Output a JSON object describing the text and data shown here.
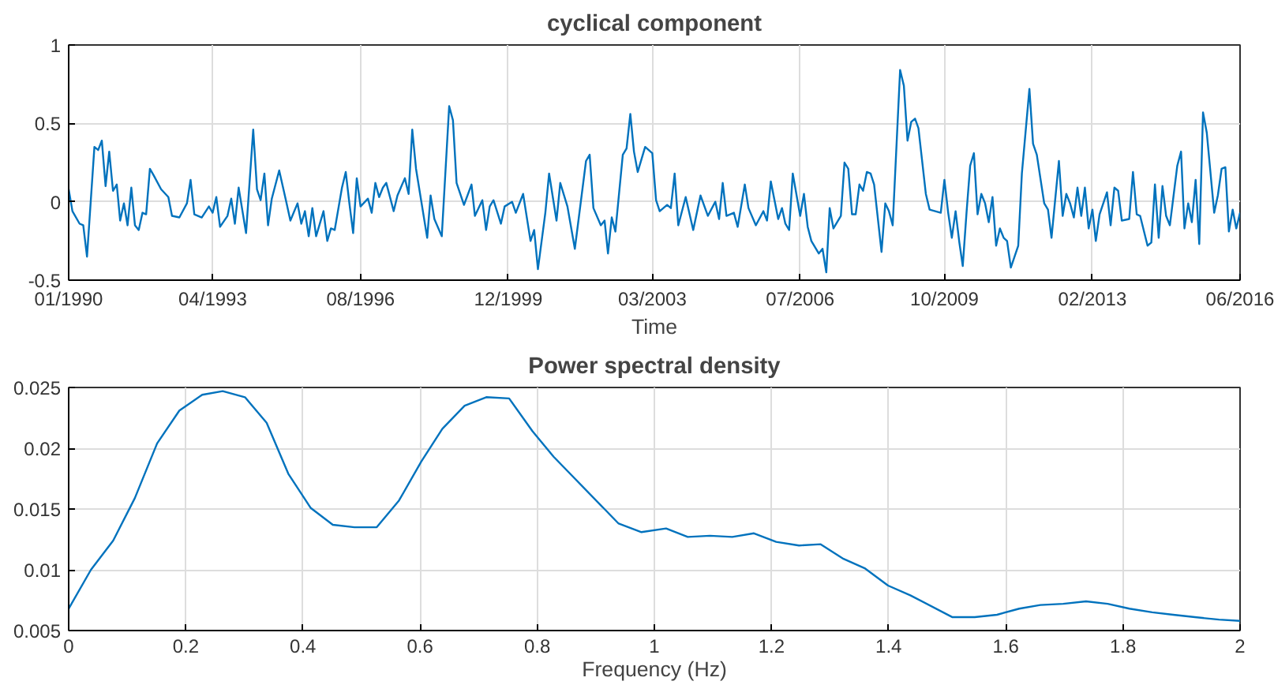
{
  "chart_data": [
    {
      "type": "line",
      "title": "cyclical component",
      "xlabel": "Time",
      "grid": true,
      "marker": "none",
      "line_style": "solid",
      "xlim": [
        "1990-01",
        "2016-06"
      ],
      "ylim": [
        -0.5,
        1
      ],
      "yticks": [
        -0.5,
        0,
        0.5,
        1
      ],
      "xticks": [
        {
          "value": "1990-01",
          "label": "01/1990"
        },
        {
          "value": "1993-04",
          "label": "04/1993"
        },
        {
          "value": "1996-08",
          "label": "08/1996"
        },
        {
          "value": "1999-12",
          "label": "12/1999"
        },
        {
          "value": "2003-03",
          "label": "03/2003"
        },
        {
          "value": "2006-07",
          "label": "07/2006"
        },
        {
          "value": "2009-10",
          "label": "10/2009"
        },
        {
          "value": "2013-02",
          "label": "02/2013"
        },
        {
          "value": "2016-06",
          "label": "06/2016"
        }
      ],
      "series": [
        {
          "color": "#0072bd",
          "x": [
            "1990-01",
            "1990-02",
            "1990-04",
            "1990-05",
            "1990-06",
            "1990-08",
            "1990-09",
            "1990-10",
            "1990-11",
            "1990-12",
            "1991-01",
            "1991-02",
            "1991-03",
            "1991-04",
            "1991-05",
            "1991-06",
            "1991-07",
            "1991-08",
            "1991-09",
            "1991-10",
            "1991-11",
            "1991-12",
            "1992-02",
            "1992-04",
            "1992-05",
            "1992-07",
            "1992-09",
            "1992-10",
            "1992-11",
            "1993-01",
            "1993-03",
            "1993-04",
            "1993-05",
            "1993-06",
            "1993-08",
            "1993-09",
            "1993-10",
            "1993-11",
            "1994-01",
            "1994-03",
            "1994-04",
            "1994-05",
            "1994-06",
            "1994-07",
            "1994-08",
            "1994-10",
            "1994-12",
            "1995-01",
            "1995-03",
            "1995-04",
            "1995-05",
            "1995-06",
            "1995-07",
            "1995-08",
            "1995-10",
            "1995-11",
            "1995-12",
            "1996-01",
            "1996-03",
            "1996-04",
            "1996-05",
            "1996-06",
            "1996-07",
            "1996-08",
            "1996-10",
            "1996-11",
            "1996-12",
            "1997-01",
            "1997-02",
            "1997-03",
            "1997-05",
            "1997-06",
            "1997-08",
            "1997-09",
            "1997-10",
            "1997-11",
            "1998-02",
            "1998-03",
            "1998-04",
            "1998-06",
            "1998-08",
            "1998-09",
            "1998-10",
            "1998-12",
            "1999-02",
            "1999-03",
            "1999-05",
            "1999-06",
            "1999-07",
            "1999-08",
            "1999-10",
            "1999-11",
            "2000-01",
            "2000-02",
            "2000-04",
            "2000-06",
            "2000-07",
            "2000-08",
            "2000-10",
            "2000-11",
            "2001-01",
            "2001-02",
            "2001-04",
            "2001-06",
            "2001-09",
            "2001-10",
            "2001-11",
            "2002-01",
            "2002-02",
            "2002-03",
            "2002-04",
            "2002-05",
            "2002-07",
            "2002-08",
            "2002-09",
            "2002-10",
            "2002-11",
            "2003-01",
            "2003-03",
            "2003-04",
            "2003-05",
            "2003-07",
            "2003-08",
            "2003-09",
            "2003-10",
            "2003-12",
            "2004-02",
            "2004-04",
            "2004-06",
            "2004-08",
            "2004-09",
            "2004-10",
            "2004-11",
            "2005-01",
            "2005-02",
            "2005-04",
            "2005-05",
            "2005-07",
            "2005-09",
            "2005-10",
            "2005-11",
            "2006-01",
            "2006-02",
            "2006-03",
            "2006-04",
            "2006-05",
            "2006-07",
            "2006-08",
            "2006-09",
            "2006-10",
            "2006-12",
            "2007-01",
            "2007-02",
            "2007-03",
            "2007-04",
            "2007-06",
            "2007-07",
            "2007-08",
            "2007-09",
            "2007-10",
            "2007-11",
            "2007-12",
            "2008-01",
            "2008-02",
            "2008-03",
            "2008-05",
            "2008-06",
            "2008-07",
            "2008-08",
            "2008-10",
            "2008-11",
            "2008-12",
            "2009-01",
            "2009-02",
            "2009-03",
            "2009-05",
            "2009-06",
            "2009-09",
            "2009-10",
            "2009-11",
            "2009-12",
            "2010-01",
            "2010-02",
            "2010-03",
            "2010-04",
            "2010-05",
            "2010-06",
            "2010-07",
            "2010-08",
            "2010-09",
            "2010-10",
            "2010-11",
            "2010-12",
            "2011-01",
            "2011-02",
            "2011-03",
            "2011-04",
            "2011-06",
            "2011-07",
            "2011-09",
            "2011-10",
            "2011-11",
            "2012-01",
            "2012-02",
            "2012-03",
            "2012-05",
            "2012-06",
            "2012-07",
            "2012-08",
            "2012-09",
            "2012-10",
            "2012-11",
            "2012-12",
            "2013-01",
            "2013-02",
            "2013-03",
            "2013-04",
            "2013-06",
            "2013-07",
            "2013-08",
            "2013-09",
            "2013-10",
            "2013-12",
            "2014-01",
            "2014-02",
            "2014-03",
            "2014-05",
            "2014-06",
            "2014-07",
            "2014-08",
            "2014-09",
            "2014-10",
            "2014-11",
            "2015-01",
            "2015-02",
            "2015-03",
            "2015-04",
            "2015-05",
            "2015-06",
            "2015-07",
            "2015-08",
            "2015-09",
            "2015-11",
            "2015-12",
            "2016-01",
            "2016-02",
            "2016-03",
            "2016-04",
            "2016-05",
            "2016-06"
          ],
          "values": [
            0.08,
            -0.06,
            -0.14,
            -0.15,
            -0.35,
            0.35,
            0.33,
            0.39,
            0.1,
            0.32,
            0.07,
            0.11,
            -0.12,
            -0.01,
            -0.15,
            0.09,
            -0.15,
            -0.18,
            -0.07,
            -0.08,
            0.21,
            0.17,
            0.08,
            0.03,
            -0.09,
            -0.1,
            -0.01,
            0.14,
            -0.08,
            -0.1,
            -0.03,
            -0.07,
            0.03,
            -0.16,
            -0.09,
            0.02,
            -0.14,
            0.09,
            -0.2,
            0.46,
            0.08,
            0.01,
            0.18,
            -0.15,
            0.02,
            0.2,
            -0.01,
            -0.12,
            -0.01,
            -0.14,
            -0.06,
            -0.22,
            -0.04,
            -0.22,
            -0.06,
            -0.25,
            -0.17,
            -0.18,
            0.09,
            0.19,
            -0.01,
            -0.2,
            0.15,
            -0.03,
            0.02,
            -0.07,
            0.12,
            0.03,
            0.09,
            0.12,
            -0.06,
            0.04,
            0.15,
            0.05,
            0.46,
            0.21,
            -0.23,
            0.04,
            -0.11,
            -0.22,
            0.61,
            0.52,
            0.12,
            -0.02,
            0.11,
            -0.09,
            0.01,
            -0.18,
            -0.03,
            0.01,
            -0.14,
            -0.03,
            0.0,
            -0.07,
            0.05,
            -0.25,
            -0.18,
            -0.43,
            -0.07,
            0.18,
            -0.12,
            0.12,
            -0.03,
            -0.3,
            0.26,
            0.3,
            -0.04,
            -0.15,
            -0.12,
            -0.33,
            -0.1,
            -0.19,
            0.3,
            0.34,
            0.56,
            0.32,
            0.19,
            0.35,
            0.31,
            0.01,
            -0.06,
            -0.02,
            -0.04,
            0.18,
            -0.15,
            0.03,
            -0.18,
            0.04,
            -0.09,
            0.0,
            -0.11,
            0.12,
            -0.09,
            -0.07,
            -0.16,
            0.11,
            -0.04,
            -0.15,
            -0.06,
            -0.12,
            0.13,
            -0.11,
            -0.04,
            -0.14,
            -0.18,
            0.18,
            -0.09,
            0.05,
            -0.16,
            -0.25,
            -0.33,
            -0.3,
            -0.45,
            -0.04,
            -0.17,
            -0.09,
            0.25,
            0.21,
            -0.08,
            -0.08,
            0.11,
            0.07,
            0.19,
            0.18,
            0.11,
            -0.32,
            -0.01,
            -0.06,
            -0.15,
            0.84,
            0.74,
            0.39,
            0.51,
            0.53,
            0.47,
            0.05,
            -0.05,
            -0.07,
            0.14,
            -0.07,
            -0.23,
            -0.06,
            -0.26,
            -0.41,
            -0.07,
            0.23,
            0.31,
            -0.08,
            0.05,
            -0.01,
            -0.13,
            0.03,
            -0.28,
            -0.17,
            -0.23,
            -0.25,
            -0.42,
            -0.28,
            0.18,
            0.72,
            0.37,
            0.3,
            -0.01,
            -0.05,
            -0.23,
            0.26,
            -0.09,
            0.05,
            -0.01,
            -0.1,
            0.09,
            -0.09,
            0.09,
            -0.17,
            -0.05,
            -0.25,
            -0.08,
            0.06,
            -0.15,
            0.09,
            0.07,
            -0.12,
            -0.11,
            0.19,
            -0.08,
            -0.09,
            -0.28,
            -0.26,
            0.11,
            -0.23,
            0.1,
            -0.09,
            -0.15,
            0.23,
            0.32,
            -0.17,
            -0.01,
            -0.13,
            0.14,
            -0.27,
            0.57,
            0.44,
            -0.07,
            0.04,
            0.21,
            0.22,
            -0.19,
            -0.05,
            -0.17,
            -0.07
          ]
        }
      ]
    },
    {
      "type": "line",
      "title": "Power spectral density",
      "xlabel": "Frequency (Hz)",
      "grid": true,
      "marker": "none",
      "line_style": "solid",
      "xlim": [
        0,
        2
      ],
      "xticks": [
        0,
        0.2,
        0.4,
        0.6,
        0.8,
        1,
        1.2,
        1.4,
        1.6,
        1.8,
        2
      ],
      "ylim": [
        0.005,
        0.025
      ],
      "yticks": [
        0.005,
        0.01,
        0.015,
        0.02,
        0.025
      ],
      "series": [
        {
          "color": "#0072bd",
          "x": [
            0,
            0.038,
            0.076,
            0.113,
            0.151,
            0.189,
            0.228,
            0.263,
            0.301,
            0.338,
            0.375,
            0.413,
            0.451,
            0.488,
            0.526,
            0.564,
            0.602,
            0.638,
            0.676,
            0.713,
            0.752,
            0.792,
            0.828,
            0.939,
            0.978,
            1.02,
            1.057,
            1.095,
            1.133,
            1.17,
            1.208,
            1.247,
            1.284,
            1.323,
            1.36,
            1.399,
            1.437,
            1.509,
            1.547,
            1.585,
            1.623,
            1.659,
            1.698,
            1.737,
            1.774,
            1.811,
            1.85,
            1.886,
            1.923,
            1.964,
            2.0
          ],
          "values": [
            0.0068,
            0.01,
            0.0124,
            0.0159,
            0.0204,
            0.0231,
            0.0244,
            0.0247,
            0.0242,
            0.0221,
            0.0179,
            0.0151,
            0.0137,
            0.0135,
            0.0135,
            0.0157,
            0.0189,
            0.0216,
            0.0235,
            0.0242,
            0.0241,
            0.0214,
            0.0193,
            0.0138,
            0.0131,
            0.0134,
            0.0127,
            0.0128,
            0.0127,
            0.013,
            0.0123,
            0.012,
            0.0121,
            0.0109,
            0.0101,
            0.0087,
            0.0079,
            0.0061,
            0.0061,
            0.0063,
            0.0068,
            0.0071,
            0.0072,
            0.0074,
            0.0072,
            0.0068,
            0.0065,
            0.0063,
            0.0061,
            0.0059,
            0.0058
          ]
        }
      ]
    }
  ]
}
